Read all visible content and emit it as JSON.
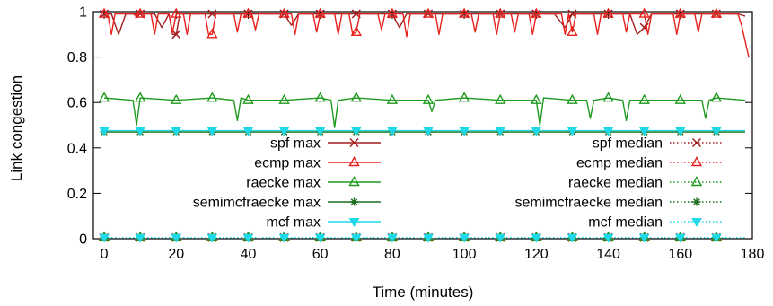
{
  "chart_data": {
    "type": "line",
    "title": "",
    "xlabel": "Time (minutes)",
    "ylabel": "Link congestion",
    "xlim": [
      -3,
      180
    ],
    "ylim": [
      0,
      1
    ],
    "xticks": [
      0,
      20,
      40,
      60,
      80,
      100,
      120,
      140,
      160,
      180
    ],
    "yticks": [
      0,
      0.2,
      0.4,
      0.6,
      0.8,
      1
    ],
    "xtick_labels": [
      "0",
      "20",
      "40",
      "60",
      "80",
      "100",
      "120",
      "140",
      "160",
      "180"
    ],
    "ytick_labels": [
      "0",
      "0.2",
      "0.4",
      "0.6",
      "0.8",
      "1"
    ],
    "marker_x": [
      0,
      10,
      20,
      30,
      40,
      50,
      60,
      70,
      80,
      90,
      100,
      110,
      120,
      130,
      140,
      150,
      160,
      170
    ],
    "legend_position": "inside, center",
    "series": [
      {
        "name": "spf max",
        "color": "#a31d1d",
        "marker": "cross",
        "dash": "solid",
        "points": [
          [
            0,
            0.99
          ],
          [
            2,
            0.99
          ],
          [
            4,
            0.9
          ],
          [
            6,
            0.99
          ],
          [
            10,
            0.99
          ],
          [
            14,
            0.99
          ],
          [
            16,
            0.93
          ],
          [
            18,
            0.99
          ],
          [
            19,
            0.9
          ],
          [
            20,
            0.9
          ],
          [
            21,
            0.99
          ],
          [
            25,
            0.99
          ],
          [
            28,
            0.99
          ],
          [
            30,
            0.99
          ],
          [
            40,
            0.99
          ],
          [
            50,
            0.99
          ],
          [
            52,
            0.94
          ],
          [
            54,
            0.99
          ],
          [
            60,
            0.99
          ],
          [
            70,
            0.99
          ],
          [
            80,
            0.99
          ],
          [
            82,
            0.93
          ],
          [
            84,
            0.99
          ],
          [
            90,
            0.99
          ],
          [
            100,
            0.99
          ],
          [
            110,
            0.99
          ],
          [
            120,
            0.99
          ],
          [
            125,
            0.99
          ],
          [
            128,
            0.93
          ],
          [
            130,
            0.99
          ],
          [
            140,
            0.99
          ],
          [
            146,
            0.99
          ],
          [
            148,
            0.9
          ],
          [
            150,
            0.93
          ],
          [
            152,
            0.99
          ],
          [
            160,
            0.99
          ],
          [
            170,
            0.99
          ],
          [
            176,
            0.99
          ],
          [
            178,
            0.98
          ]
        ]
      },
      {
        "name": "ecmp max",
        "color": "#e8201c",
        "marker": "triangle",
        "dash": "solid",
        "points": [
          [
            0,
            0.99
          ],
          [
            1,
            0.99
          ],
          [
            2,
            0.9
          ],
          [
            3,
            0.99
          ],
          [
            8,
            0.99
          ],
          [
            9,
            0.98
          ],
          [
            10,
            0.99
          ],
          [
            13,
            0.99
          ],
          [
            14,
            0.9
          ],
          [
            15,
            0.99
          ],
          [
            18,
            0.99
          ],
          [
            19,
            0.91
          ],
          [
            20,
            0.99
          ],
          [
            22,
            0.99
          ],
          [
            23,
            0.9
          ],
          [
            24,
            0.99
          ],
          [
            28,
            0.99
          ],
          [
            29,
            0.9
          ],
          [
            30,
            0.9
          ],
          [
            31,
            0.99
          ],
          [
            36,
            0.99
          ],
          [
            37,
            0.91
          ],
          [
            38,
            0.99
          ],
          [
            41,
            0.99
          ],
          [
            42,
            0.92
          ],
          [
            43,
            0.99
          ],
          [
            52,
            0.99
          ],
          [
            53,
            0.9
          ],
          [
            54,
            0.99
          ],
          [
            58,
            0.99
          ],
          [
            59,
            0.91
          ],
          [
            60,
            0.99
          ],
          [
            64,
            0.99
          ],
          [
            65,
            0.9
          ],
          [
            66,
            0.99
          ],
          [
            68,
            0.99
          ],
          [
            69,
            0.9
          ],
          [
            70,
            0.91
          ],
          [
            71,
            0.99
          ],
          [
            76,
            0.99
          ],
          [
            77,
            0.92
          ],
          [
            78,
            0.99
          ],
          [
            83,
            0.99
          ],
          [
            84,
            0.89
          ],
          [
            85,
            0.99
          ],
          [
            92,
            0.99
          ],
          [
            93,
            0.9
          ],
          [
            94,
            0.99
          ],
          [
            102,
            0.99
          ],
          [
            103,
            0.91
          ],
          [
            104,
            0.99
          ],
          [
            108,
            0.99
          ],
          [
            109,
            0.9
          ],
          [
            110,
            0.99
          ],
          [
            113,
            0.99
          ],
          [
            114,
            0.91
          ],
          [
            115,
            0.99
          ],
          [
            118,
            0.99
          ],
          [
            119,
            0.9
          ],
          [
            120,
            0.99
          ],
          [
            127,
            0.99
          ],
          [
            128,
            0.9
          ],
          [
            129,
            0.99
          ],
          [
            130,
            0.91
          ],
          [
            131,
            0.99
          ],
          [
            136,
            0.99
          ],
          [
            137,
            0.9
          ],
          [
            138,
            0.99
          ],
          [
            144,
            0.99
          ],
          [
            145,
            0.91
          ],
          [
            146,
            0.99
          ],
          [
            150,
            0.99
          ],
          [
            151,
            0.9
          ],
          [
            152,
            0.99
          ],
          [
            158,
            0.99
          ],
          [
            159,
            0.9
          ],
          [
            160,
            0.99
          ],
          [
            164,
            0.99
          ],
          [
            165,
            0.91
          ],
          [
            166,
            0.99
          ],
          [
            176,
            0.99
          ],
          [
            177,
            0.94
          ],
          [
            179,
            0.8
          ]
        ]
      },
      {
        "name": "raecke max",
        "color": "#1f9a1f",
        "marker": "triangle",
        "dash": "solid",
        "points": [
          [
            0,
            0.62
          ],
          [
            8,
            0.61
          ],
          [
            9,
            0.5
          ],
          [
            10,
            0.62
          ],
          [
            20,
            0.61
          ],
          [
            30,
            0.62
          ],
          [
            36,
            0.61
          ],
          [
            37,
            0.52
          ],
          [
            38,
            0.62
          ],
          [
            40,
            0.61
          ],
          [
            50,
            0.61
          ],
          [
            60,
            0.62
          ],
          [
            63,
            0.61
          ],
          [
            64,
            0.49
          ],
          [
            65,
            0.61
          ],
          [
            70,
            0.62
          ],
          [
            80,
            0.61
          ],
          [
            90,
            0.61
          ],
          [
            91,
            0.56
          ],
          [
            92,
            0.61
          ],
          [
            100,
            0.62
          ],
          [
            110,
            0.61
          ],
          [
            120,
            0.61
          ],
          [
            121,
            0.5
          ],
          [
            122,
            0.62
          ],
          [
            130,
            0.61
          ],
          [
            134,
            0.61
          ],
          [
            135,
            0.53
          ],
          [
            136,
            0.61
          ],
          [
            140,
            0.62
          ],
          [
            144,
            0.61
          ],
          [
            145,
            0.52
          ],
          [
            146,
            0.61
          ],
          [
            150,
            0.61
          ],
          [
            160,
            0.61
          ],
          [
            166,
            0.61
          ],
          [
            167,
            0.53
          ],
          [
            168,
            0.61
          ],
          [
            170,
            0.62
          ],
          [
            178,
            0.61
          ]
        ]
      },
      {
        "name": "semimcfraecke max",
        "color": "#1a6b1a",
        "marker": "asterisk",
        "dash": "solid",
        "points": [
          [
            0,
            0.47
          ],
          [
            178,
            0.47
          ]
        ]
      },
      {
        "name": "mcf max",
        "color": "#1fd8e8",
        "marker": "triangle-down",
        "dash": "solid",
        "points": [
          [
            0,
            0.476
          ],
          [
            178,
            0.476
          ]
        ]
      },
      {
        "name": "spf median",
        "color": "#a31d1d",
        "marker": "cross",
        "dash": "dotted",
        "points": [
          [
            0,
            0.005
          ],
          [
            178,
            0.005
          ]
        ]
      },
      {
        "name": "ecmp median",
        "color": "#e8201c",
        "marker": "triangle",
        "dash": "dotted",
        "points": [
          [
            0,
            0.005
          ],
          [
            178,
            0.005
          ]
        ]
      },
      {
        "name": "raecke median",
        "color": "#1f9a1f",
        "marker": "triangle",
        "dash": "dotted",
        "points": [
          [
            0,
            0.005
          ],
          [
            178,
            0.005
          ]
        ]
      },
      {
        "name": "semimcfraecke median",
        "color": "#1a6b1a",
        "marker": "asterisk",
        "dash": "dotted",
        "points": [
          [
            0,
            0.005
          ],
          [
            178,
            0.005
          ]
        ]
      },
      {
        "name": "mcf median",
        "color": "#1fd8e8",
        "marker": "triangle-down",
        "dash": "dotted",
        "points": [
          [
            0,
            0.005
          ],
          [
            178,
            0.005
          ]
        ]
      }
    ]
  }
}
